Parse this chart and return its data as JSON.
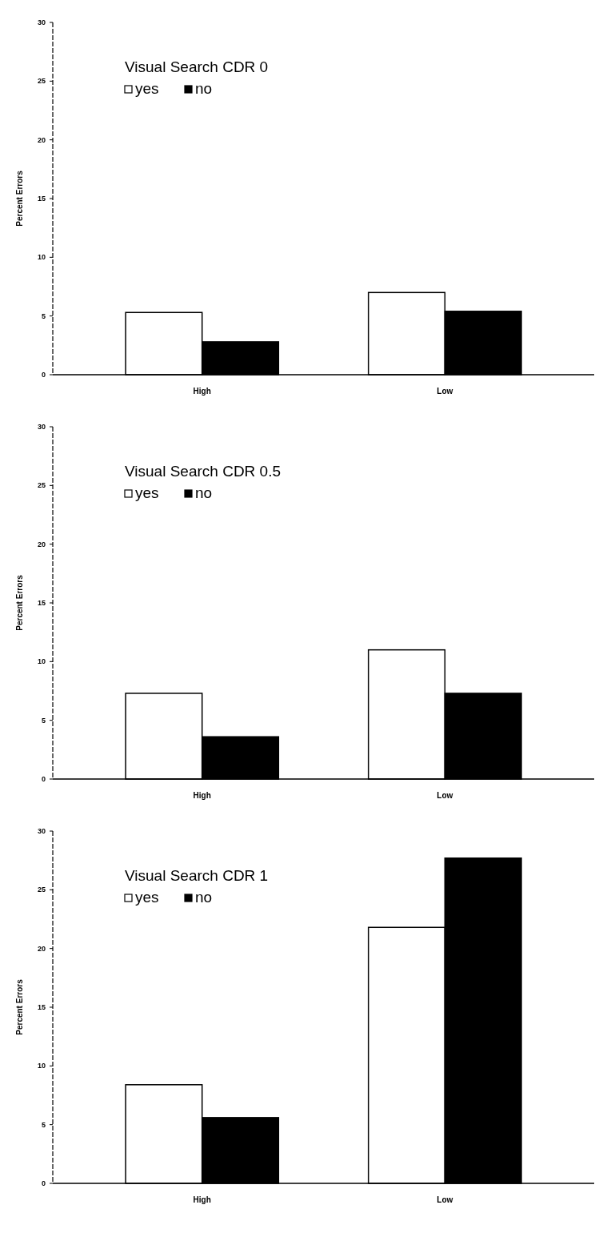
{
  "chart_data": [
    {
      "type": "bar",
      "title": "Visual Search CDR 0",
      "ylabel": "Percent Errors",
      "categories": [
        "High",
        "Low"
      ],
      "series": [
        {
          "name": "yes",
          "color": "#ffffff",
          "values": [
            5.3,
            7.0
          ]
        },
        {
          "name": "no",
          "color": "#000000",
          "values": [
            2.8,
            5.4
          ]
        }
      ],
      "ylim": [
        0,
        30
      ],
      "yticks": [
        0,
        5,
        10,
        15,
        20,
        25,
        30
      ],
      "legend": "top left"
    },
    {
      "type": "bar",
      "title": "Visual Search CDR 0.5",
      "ylabel": "Percent Errors",
      "categories": [
        "High",
        "Low"
      ],
      "series": [
        {
          "name": "yes",
          "color": "#ffffff",
          "values": [
            7.3,
            11.0
          ]
        },
        {
          "name": "no",
          "color": "#000000",
          "values": [
            3.6,
            7.3
          ]
        }
      ],
      "ylim": [
        0,
        30
      ],
      "yticks": [
        0,
        5,
        10,
        15,
        20,
        25,
        30
      ],
      "legend": "top left"
    },
    {
      "type": "bar",
      "title": "Visual Search CDR  1",
      "ylabel": "Percent Errors",
      "categories": [
        "High",
        "Low"
      ],
      "series": [
        {
          "name": "yes",
          "color": "#ffffff",
          "values": [
            8.4,
            21.8
          ]
        },
        {
          "name": "no",
          "color": "#000000",
          "values": [
            5.6,
            27.7
          ]
        }
      ],
      "ylim": [
        0,
        30
      ],
      "yticks": [
        0,
        5,
        10,
        15,
        20,
        25,
        30
      ],
      "legend": "top left"
    }
  ]
}
